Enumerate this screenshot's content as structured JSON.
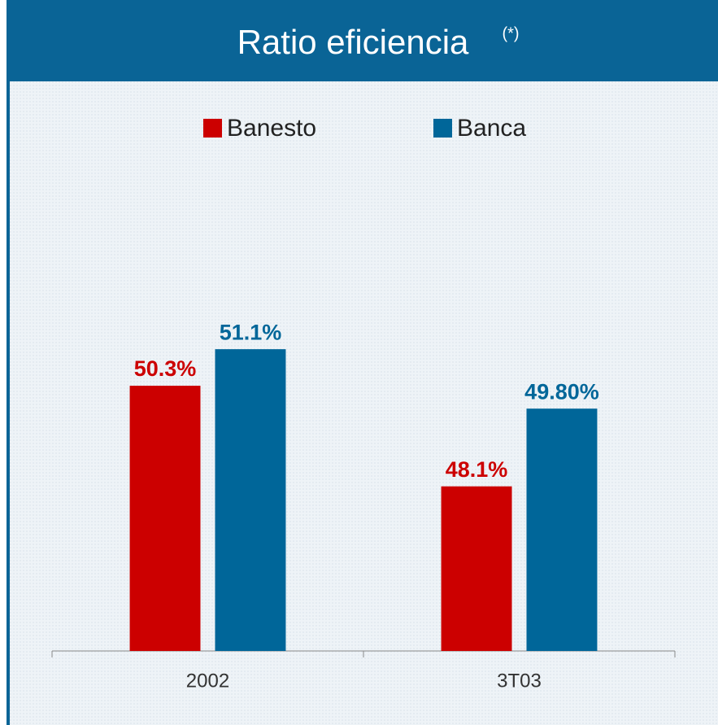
{
  "chart_data": {
    "type": "bar",
    "title": "Ratio eficiencia",
    "title_superscript": "(*)",
    "categories": [
      "2002",
      "3T03"
    ],
    "series": [
      {
        "name": "Banesto",
        "color": "#cc0000",
        "values": [
          50.3,
          48.1
        ],
        "value_labels": [
          "50.3%",
          "48.1%"
        ]
      },
      {
        "name": "Banca",
        "color": "#006699",
        "values": [
          51.1,
          49.8
        ],
        "value_labels": [
          "51.1%",
          "49.80%"
        ]
      }
    ],
    "ylim": [
      44.5,
      55
    ],
    "legend": "top"
  }
}
